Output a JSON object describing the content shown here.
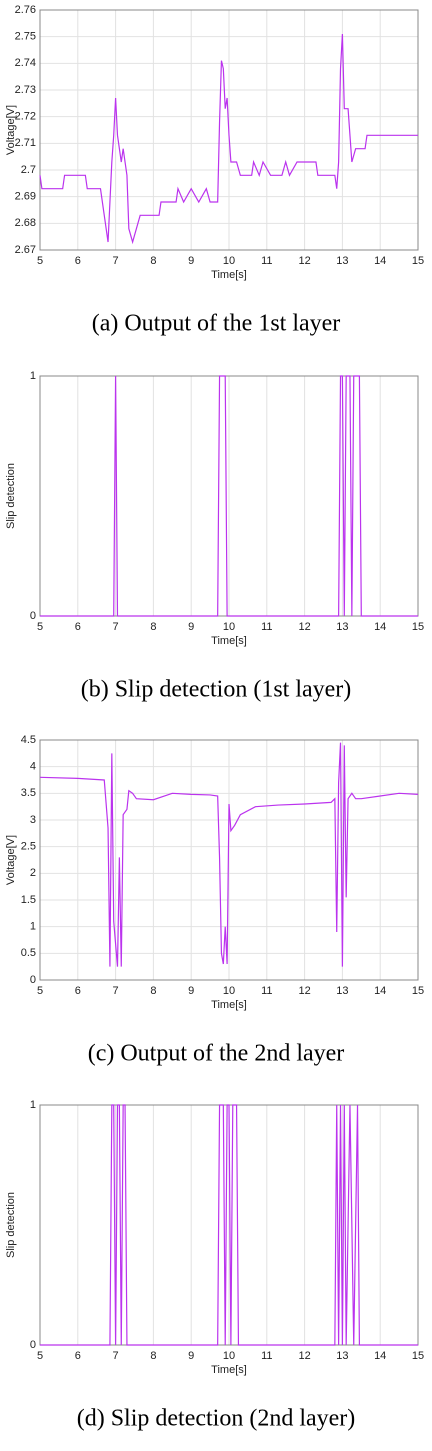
{
  "chart_data": [
    {
      "type": "line",
      "caption": "(a) Output of the 1st layer",
      "x_label": "Time[s]",
      "y_label": "Voltage[V]",
      "color": "#bb33ee",
      "grid": true,
      "xlim": [
        5,
        15
      ],
      "xticks": [
        5,
        6,
        7,
        8,
        9,
        10,
        11,
        12,
        13,
        14,
        15
      ],
      "ylim": [
        2.67,
        2.76
      ],
      "yticks": [
        2.67,
        2.68,
        2.69,
        2.7,
        2.71,
        2.72,
        2.73,
        2.74,
        2.75,
        2.76
      ],
      "x": [
        5.0,
        5.05,
        5.6,
        5.65,
        6.2,
        6.25,
        6.6,
        6.7,
        6.8,
        6.9,
        6.95,
        7.0,
        7.05,
        7.15,
        7.2,
        7.3,
        7.35,
        7.45,
        7.55,
        7.65,
        8.15,
        8.2,
        8.6,
        8.65,
        8.8,
        9.0,
        9.2,
        9.4,
        9.5,
        9.7,
        9.75,
        9.8,
        9.85,
        9.9,
        9.95,
        10.0,
        10.05,
        10.2,
        10.3,
        10.6,
        10.65,
        10.8,
        10.9,
        11.1,
        11.4,
        11.5,
        11.6,
        11.8,
        12.3,
        12.35,
        12.8,
        12.85,
        12.9,
        12.95,
        13.0,
        13.05,
        13.15,
        13.25,
        13.35,
        13.6,
        13.65,
        15.0
      ],
      "values": [
        2.698,
        2.693,
        2.693,
        2.698,
        2.698,
        2.693,
        2.693,
        2.683,
        2.673,
        2.703,
        2.713,
        2.727,
        2.713,
        2.703,
        2.708,
        2.698,
        2.678,
        2.673,
        2.678,
        2.683,
        2.683,
        2.688,
        2.688,
        2.693,
        2.688,
        2.693,
        2.688,
        2.693,
        2.688,
        2.688,
        2.718,
        2.741,
        2.738,
        2.723,
        2.727,
        2.713,
        2.703,
        2.703,
        2.698,
        2.698,
        2.703,
        2.698,
        2.703,
        2.698,
        2.698,
        2.703,
        2.698,
        2.703,
        2.703,
        2.698,
        2.698,
        2.693,
        2.703,
        2.738,
        2.751,
        2.723,
        2.723,
        2.703,
        2.708,
        2.708,
        2.713,
        2.713
      ]
    },
    {
      "type": "line",
      "caption": "(b) Slip detection (1st layer)",
      "x_label": "Time[s]",
      "y_label": "Slip detection",
      "color": "#bb33ee",
      "grid": true,
      "xlim": [
        5,
        15
      ],
      "xticks": [
        5,
        6,
        7,
        8,
        9,
        10,
        11,
        12,
        13,
        14,
        15
      ],
      "ylim": [
        0,
        1
      ],
      "yticks": [
        0,
        1
      ],
      "x": [
        5.0,
        6.95,
        7.0,
        7.05,
        9.7,
        9.75,
        9.9,
        9.95,
        12.9,
        12.95,
        13.0,
        13.05,
        13.1,
        13.2,
        13.25,
        13.3,
        13.45,
        13.5,
        15.0
      ],
      "values": [
        0,
        0,
        1,
        0,
        0,
        1,
        1,
        0,
        0,
        1,
        1,
        0,
        1,
        1,
        0,
        1,
        1,
        0,
        0
      ]
    },
    {
      "type": "line",
      "caption": "(c) Output of the 2nd layer",
      "x_label": "Time[s]",
      "y_label": "Voltage[V]",
      "color": "#bb33ee",
      "grid": true,
      "xlim": [
        5,
        15
      ],
      "xticks": [
        5,
        6,
        7,
        8,
        9,
        10,
        11,
        12,
        13,
        14,
        15
      ],
      "ylim": [
        0,
        4.5
      ],
      "yticks": [
        0,
        0.5,
        1,
        1.5,
        2,
        2.5,
        3,
        3.5,
        4,
        4.5
      ],
      "x": [
        5.0,
        6.0,
        6.7,
        6.8,
        6.85,
        6.9,
        6.95,
        7.05,
        7.1,
        7.15,
        7.2,
        7.3,
        7.35,
        7.45,
        7.55,
        8.0,
        8.5,
        9.0,
        9.5,
        9.7,
        9.75,
        9.8,
        9.85,
        9.9,
        9.95,
        10.0,
        10.05,
        10.15,
        10.3,
        10.7,
        11.3,
        12.0,
        12.7,
        12.8,
        12.85,
        12.9,
        12.95,
        13.0,
        13.05,
        13.1,
        13.15,
        13.25,
        13.35,
        13.5,
        14.0,
        14.5,
        15.0
      ],
      "values": [
        3.8,
        3.78,
        3.75,
        2.85,
        0.25,
        4.25,
        1.1,
        0.25,
        2.3,
        0.25,
        3.1,
        3.2,
        3.55,
        3.5,
        3.4,
        3.38,
        3.5,
        3.48,
        3.47,
        3.45,
        2.3,
        0.5,
        0.3,
        1.0,
        0.3,
        3.3,
        2.8,
        2.9,
        3.1,
        3.25,
        3.28,
        3.3,
        3.33,
        3.4,
        0.9,
        3.7,
        4.45,
        0.25,
        4.4,
        1.55,
        3.4,
        3.5,
        3.4,
        3.4,
        3.45,
        3.5,
        3.48
      ]
    },
    {
      "type": "line",
      "caption": "(d) Slip detection (2nd layer)",
      "x_label": "Time[s]",
      "y_label": "Slip detection",
      "color": "#bb33ee",
      "grid": true,
      "xlim": [
        5,
        15
      ],
      "xticks": [
        5,
        6,
        7,
        8,
        9,
        10,
        11,
        12,
        13,
        14,
        15
      ],
      "ylim": [
        0,
        1
      ],
      "yticks": [
        0,
        1
      ],
      "x": [
        5.0,
        6.85,
        6.9,
        6.95,
        7.0,
        7.05,
        7.1,
        7.15,
        7.2,
        7.25,
        7.3,
        9.7,
        9.75,
        9.85,
        9.9,
        9.95,
        10.0,
        10.05,
        10.1,
        10.2,
        10.25,
        12.8,
        12.85,
        12.9,
        12.95,
        13.0,
        13.05,
        13.1,
        13.2,
        13.3,
        13.4,
        13.45,
        15.0
      ],
      "values": [
        0,
        0,
        1,
        1,
        0,
        1,
        1,
        0,
        1,
        1,
        0,
        0,
        1,
        1,
        0,
        1,
        1,
        0,
        1,
        1,
        0,
        0,
        1,
        0,
        1,
        0,
        1,
        0,
        1,
        0,
        1,
        0,
        0
      ]
    }
  ]
}
